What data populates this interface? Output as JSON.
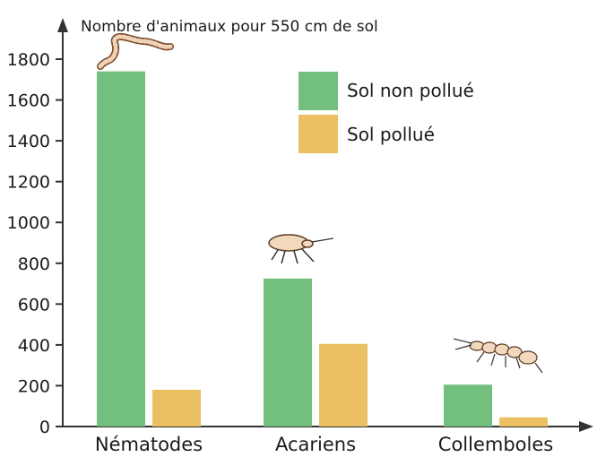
{
  "chart_data": {
    "type": "bar",
    "ylabel": "Nombre d'animaux pour 550 cm de sol",
    "categories": [
      "Nématodes",
      "Acariens",
      "Collemboles"
    ],
    "series": [
      {
        "name": "Sol non pollué",
        "color": "#72bf7e",
        "values": [
          1740,
          725,
          205
        ]
      },
      {
        "name": "Sol pollué",
        "color": "#eac063",
        "values": [
          180,
          405,
          45
        ]
      }
    ],
    "ylim": [
      0,
      1800
    ],
    "yticks": [
      0,
      200,
      400,
      600,
      800,
      1000,
      1200,
      1400,
      1600,
      1800
    ],
    "legend": "top-right",
    "grid": false,
    "illustrations": [
      "worm-icon",
      "mite-icon",
      "springtail-icon"
    ]
  }
}
